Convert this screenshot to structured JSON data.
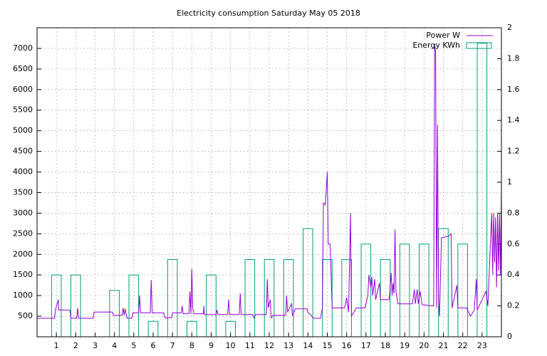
{
  "chart_data": {
    "type": "line_boxes",
    "title": "Electricity consumption Saturday May 05 2018",
    "xlim": [
      0,
      24
    ],
    "xticks": [
      1,
      2,
      3,
      4,
      5,
      6,
      7,
      8,
      9,
      10,
      11,
      12,
      13,
      14,
      15,
      16,
      17,
      18,
      19,
      20,
      21,
      22,
      23
    ],
    "ylim": [
      0,
      7500
    ],
    "yticks": [
      500,
      1000,
      1500,
      2000,
      2500,
      3000,
      3500,
      4000,
      4500,
      5000,
      5500,
      6000,
      6500,
      7000
    ],
    "y2lim": [
      0,
      2
    ],
    "y2ticks": [
      0,
      0.2,
      0.4,
      0.6,
      0.8,
      1,
      1.2,
      1.4,
      1.6,
      1.8,
      2
    ],
    "grid": true,
    "legend": "top-right",
    "series": [
      {
        "name": "Power W",
        "color": "#9400d3",
        "x": [
          0,
          0.9,
          0.95,
          1.1,
          1.12,
          1.7,
          1.75,
          2.05,
          2.1,
          2.15,
          2.9,
          2.95,
          3.9,
          3.95,
          4.4,
          4.45,
          4.5,
          4.55,
          4.65,
          4.9,
          4.95,
          5.25,
          5.3,
          5.35,
          5.85,
          5.9,
          5.95,
          6.55,
          6.6,
          6.95,
          7.0,
          7.45,
          7.5,
          7.55,
          7.85,
          7.9,
          7.95,
          8.0,
          8.05,
          8.1,
          8.6,
          8.62,
          8.65,
          9.25,
          9.3,
          9.35,
          9.85,
          9.9,
          9.95,
          10.45,
          10.5,
          10.55,
          11.15,
          11.2,
          11.3,
          11.85,
          11.9,
          11.95,
          12.05,
          12.1,
          12.2,
          12.85,
          12.9,
          12.95,
          13.15,
          13.2,
          13.35,
          13.95,
          14.0,
          14.3,
          14.65,
          14.75,
          14.8,
          14.9,
          15.0,
          15.05,
          15.15,
          15.25,
          15.9,
          16.0,
          16.1,
          16.2,
          16.25,
          16.5,
          16.95,
          17.1,
          17.15,
          17.25,
          17.3,
          17.35,
          17.45,
          17.5,
          17.7,
          17.75,
          18.2,
          18.3,
          18.35,
          18.4,
          18.45,
          18.5,
          18.55,
          18.65,
          19.4,
          19.5,
          19.55,
          19.65,
          19.7,
          19.8,
          19.9,
          20.4,
          20.5,
          20.55,
          20.6,
          20.65,
          20.7,
          20.75,
          20.8,
          20.9,
          21.3,
          21.4,
          21.45,
          21.7,
          21.75,
          22.2,
          22.4,
          22.6,
          22.7,
          22.75,
          23.0,
          23.2,
          23.3,
          23.5,
          23.55,
          23.6,
          23.65,
          23.7,
          23.75,
          23.8,
          23.85,
          23.9,
          23.95,
          24.0
        ],
        "values": [
          450,
          450,
          650,
          900,
          650,
          650,
          450,
          450,
          700,
          450,
          450,
          600,
          600,
          520,
          520,
          700,
          520,
          680,
          450,
          450,
          580,
          580,
          1000,
          580,
          580,
          1380,
          580,
          580,
          460,
          460,
          580,
          580,
          750,
          560,
          560,
          1100,
          560,
          1650,
          700,
          560,
          560,
          750,
          540,
          540,
          650,
          540,
          540,
          900,
          540,
          540,
          1050,
          540,
          540,
          460,
          540,
          540,
          1400,
          700,
          900,
          460,
          520,
          520,
          1000,
          600,
          800,
          520,
          680,
          680,
          600,
          450,
          450,
          700,
          3250,
          3200,
          4000,
          2250,
          2250,
          700,
          700,
          950,
          600,
          3000,
          500,
          700,
          700,
          1000,
          1500,
          1200,
          1450,
          1000,
          1400,
          900,
          1300,
          900,
          900,
          1550,
          1000,
          1300,
          1050,
          2600,
          1100,
          800,
          800,
          1150,
          800,
          1150,
          800,
          1100,
          780,
          750,
          750,
          7100,
          6900,
          700,
          5150,
          900,
          500,
          2400,
          2450,
          2500,
          700,
          1250,
          700,
          700,
          500,
          650,
          1400,
          650,
          900,
          1100,
          750,
          3000,
          1500,
          3000,
          1800,
          2900,
          1200,
          3000,
          1600,
          3000,
          1500,
          3600
        ]
      },
      {
        "name": "Energy KWh",
        "color": "#009e73",
        "axis": "y2",
        "x": [
          1,
          2,
          3,
          4,
          5,
          6,
          7,
          8,
          9,
          10,
          11,
          12,
          13,
          14,
          15,
          16,
          17,
          18,
          19,
          20,
          21,
          22,
          23
        ],
        "values": [
          0.4,
          0.4,
          0,
          0.3,
          0.4,
          0.1,
          0.5,
          0.1,
          0.4,
          0.1,
          0.5,
          0.5,
          0.5,
          0.7,
          0.5,
          0.5,
          0.6,
          0.5,
          0.6,
          0.6,
          0.7,
          0.6,
          1.9
        ]
      }
    ]
  }
}
